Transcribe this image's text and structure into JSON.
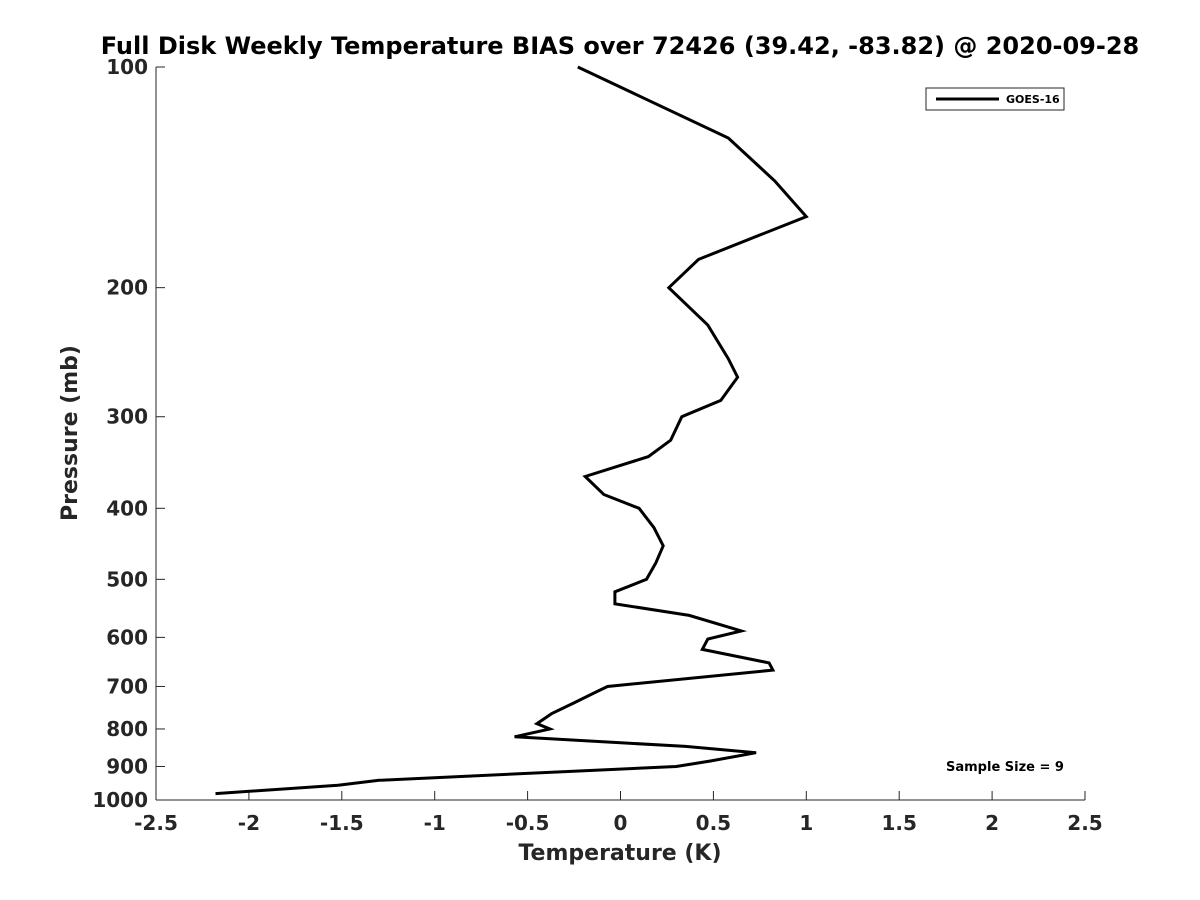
{
  "chart_data": {
    "type": "line",
    "title": "Full Disk Weekly Temperature BIAS over 72426 (39.42, -83.82) @ 2020-09-28",
    "xlabel": "Temperature (K)",
    "ylabel": "Pressure (mb)",
    "xlim": [
      -2.5,
      2.5
    ],
    "ylim": [
      100,
      1000
    ],
    "y_scale": "log",
    "y_reversed": true,
    "x_ticks": [
      "-2.5",
      "-2",
      "-1.5",
      "-1",
      "-0.5",
      "0",
      "0.5",
      "1",
      "1.5",
      "2",
      "2.5"
    ],
    "y_ticks": [
      "100",
      "200",
      "300",
      "400",
      "500",
      "600",
      "700",
      "800",
      "900",
      "1000"
    ],
    "grid": false,
    "legend_position": "top-right",
    "series": [
      {
        "name": "GOES-16",
        "color": "#000000",
        "points": [
          {
            "t": -0.23,
            "p": 100
          },
          {
            "t": 0.58,
            "p": 125
          },
          {
            "t": 0.83,
            "p": 143
          },
          {
            "t": 1.0,
            "p": 160
          },
          {
            "t": 0.42,
            "p": 183
          },
          {
            "t": 0.26,
            "p": 200
          },
          {
            "t": 0.47,
            "p": 225
          },
          {
            "t": 0.58,
            "p": 250
          },
          {
            "t": 0.63,
            "p": 265
          },
          {
            "t": 0.54,
            "p": 285
          },
          {
            "t": 0.33,
            "p": 300
          },
          {
            "t": 0.27,
            "p": 323
          },
          {
            "t": 0.15,
            "p": 340
          },
          {
            "t": -0.19,
            "p": 362
          },
          {
            "t": -0.09,
            "p": 383
          },
          {
            "t": 0.1,
            "p": 400
          },
          {
            "t": 0.18,
            "p": 425
          },
          {
            "t": 0.23,
            "p": 450
          },
          {
            "t": 0.19,
            "p": 475
          },
          {
            "t": 0.14,
            "p": 500
          },
          {
            "t": -0.03,
            "p": 520
          },
          {
            "t": -0.03,
            "p": 540
          },
          {
            "t": 0.37,
            "p": 560
          },
          {
            "t": 0.65,
            "p": 588
          },
          {
            "t": 0.47,
            "p": 603
          },
          {
            "t": 0.44,
            "p": 623
          },
          {
            "t": 0.8,
            "p": 650
          },
          {
            "t": 0.82,
            "p": 665
          },
          {
            "t": -0.07,
            "p": 700
          },
          {
            "t": -0.13,
            "p": 712
          },
          {
            "t": -0.25,
            "p": 737
          },
          {
            "t": -0.37,
            "p": 762
          },
          {
            "t": -0.45,
            "p": 787
          },
          {
            "t": -0.38,
            "p": 800
          },
          {
            "t": -0.57,
            "p": 820
          },
          {
            "t": 0.35,
            "p": 845
          },
          {
            "t": 0.73,
            "p": 862
          },
          {
            "t": 0.48,
            "p": 885
          },
          {
            "t": 0.3,
            "p": 900
          },
          {
            "t": -1.3,
            "p": 940
          },
          {
            "t": -1.52,
            "p": 955
          },
          {
            "t": -2.18,
            "p": 980
          }
        ]
      }
    ],
    "annotations": [
      "Sample Size = 9"
    ]
  }
}
